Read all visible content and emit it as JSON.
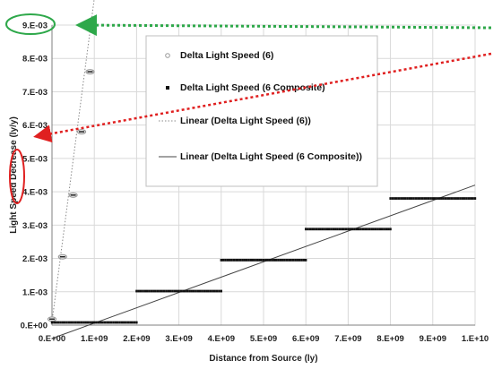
{
  "chart_data": {
    "type": "scatter",
    "xlabel": "Distance from Source (ly)",
    "ylabel_parts": [
      "Light Speed ",
      "Decrease",
      " (ly/y)"
    ],
    "xlim": [
      0,
      10000000000
    ],
    "ylim": [
      0,
      0.009
    ],
    "x_tick_labels": [
      "0.E+00",
      "1.E+09",
      "2.E+09",
      "3.E+09",
      "4.E+09",
      "5.E+09",
      "6.E+09",
      "7.E+09",
      "8.E+09",
      "9.E+09",
      "1.E+10"
    ],
    "y_tick_labels": [
      "0.E+00",
      "1.E-03",
      "2.E-03",
      "3.E-03",
      "4.E-03",
      "5.E-03",
      "6.E-03",
      "7.E-03",
      "8.E-03",
      "9.E-03"
    ],
    "grid": true,
    "legend_position": "top-center",
    "series": [
      {
        "name": "Delta Light Speed (6)",
        "marker": "hollow-circle",
        "color": "#9a9a9a",
        "points": [
          [
            0,
            0.00018
          ],
          [
            250000000,
            0.00205
          ],
          [
            500000000,
            0.0039
          ],
          [
            700000000,
            0.0058
          ],
          [
            900000000,
            0.0076
          ]
        ]
      },
      {
        "name": "Delta Light Speed (6 Composite)",
        "marker": "filled-square",
        "color": "#111111",
        "segments": [
          {
            "x_start": 0,
            "x_end": 2000000000,
            "y": 8e-05
          },
          {
            "x_start": 2000000000,
            "x_end": 4000000000,
            "y": 0.00102
          },
          {
            "x_start": 4000000000,
            "x_end": 6000000000,
            "y": 0.00195
          },
          {
            "x_start": 6000000000,
            "x_end": 8000000000,
            "y": 0.00288
          },
          {
            "x_start": 8000000000,
            "x_end": 10000000000,
            "y": 0.0038
          }
        ]
      }
    ],
    "trendlines": [
      {
        "name": "Linear (Delta Light Speed (6))",
        "style": "dotted",
        "color": "#8a8a8a",
        "from": [
          0,
          0.0001
        ],
        "to": [
          1000000000,
          0.0098
        ]
      },
      {
        "name": "Linear (Delta Light Speed (6 Composite))",
        "style": "solid",
        "color": "#444444",
        "from": [
          0,
          -0.0004
        ],
        "to": [
          10000000000,
          0.0042
        ]
      }
    ],
    "annotations": {
      "green_ellipse_color": "#2ea84a",
      "red_ellipse_color": "#e02020",
      "green_arrow_color": "#2ea84a",
      "red_arrow_color": "#e02020"
    }
  }
}
